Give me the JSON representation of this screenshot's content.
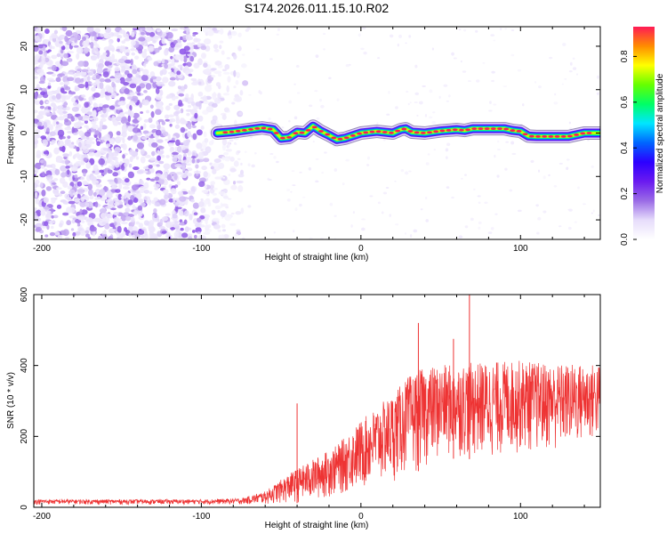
{
  "title": "S174.2026.011.15.10.R02",
  "chart_data": [
    {
      "type": "heatmap",
      "xlabel": "Height of straight line (km)",
      "ylabel": "Frequency (Hz)",
      "xlim": [
        -205,
        150
      ],
      "ylim": [
        -24.5,
        24.5
      ],
      "xticks": [
        -200,
        -100,
        0,
        100
      ],
      "yticks": [
        -20,
        -10,
        0,
        10,
        20
      ],
      "colorbar": {
        "label": "Normalized spectral amplitude",
        "range": [
          0,
          0.93
        ],
        "ticks": [
          0.0,
          0.2,
          0.4,
          0.6,
          0.8
        ],
        "colormap": [
          "#ffffff",
          "#e6dcfb",
          "#9a6be6",
          "#6a1af0",
          "#2c00ff",
          "#0066ff",
          "#00e6ff",
          "#00ff66",
          "#66ff00",
          "#ffff00",
          "#ff8c00",
          "#ff1a55"
        ]
      },
      "noise_region": {
        "x": [
          -205,
          -72
        ],
        "amplitude": [
          0.05,
          0.2
        ]
      },
      "ridge": {
        "x": [
          -90,
          -80,
          -70,
          -62,
          -55,
          -50,
          -45,
          -40,
          -35,
          -30,
          -25,
          -20,
          -15,
          -10,
          -5,
          0,
          10,
          20,
          25,
          28,
          32,
          40,
          50,
          60,
          65,
          70,
          80,
          90,
          95,
          100,
          105,
          110,
          120,
          130,
          140,
          150
        ],
        "frequency": [
          0,
          0.3,
          0.8,
          1.2,
          0.8,
          -1.2,
          -1.0,
          0.2,
          0,
          1.6,
          0.4,
          -0.5,
          -1.5,
          -1.2,
          -0.6,
          0,
          0.4,
          0,
          0.8,
          1.0,
          0.2,
          0,
          0.5,
          0.8,
          0.6,
          1.0,
          1.0,
          1.0,
          0.6,
          0.4,
          -0.7,
          -0.8,
          -0.8,
          -0.8,
          0,
          0
        ],
        "peak_amplitude": 0.93
      }
    },
    {
      "type": "line",
      "xlabel": "Height of straight line (km)",
      "ylabel": "SNR (10 * v/v)",
      "xlim": [
        -205,
        150
      ],
      "ylim": [
        0,
        600
      ],
      "xticks": [
        -200,
        -100,
        0,
        100
      ],
      "yticks": [
        0,
        200,
        400,
        600
      ],
      "color": "#ee3333",
      "envelope": {
        "x": [
          -205,
          -100,
          -75,
          -60,
          -45,
          -30,
          -15,
          0,
          20,
          30,
          40,
          60,
          80,
          100,
          120,
          150
        ],
        "upper": [
          22,
          22,
          25,
          45,
          95,
          135,
          175,
          245,
          320,
          370,
          395,
          405,
          410,
          415,
          405,
          405
        ],
        "lower": [
          8,
          8,
          8,
          8,
          10,
          15,
          30,
          45,
          70,
          90,
          110,
          140,
          130,
          150,
          150,
          180
        ]
      },
      "spikes": [
        {
          "x": -40,
          "y": 293
        },
        {
          "x": 36,
          "y": 520
        },
        {
          "x": 68,
          "y": 600
        },
        {
          "x": 58,
          "y": 475
        }
      ]
    }
  ]
}
